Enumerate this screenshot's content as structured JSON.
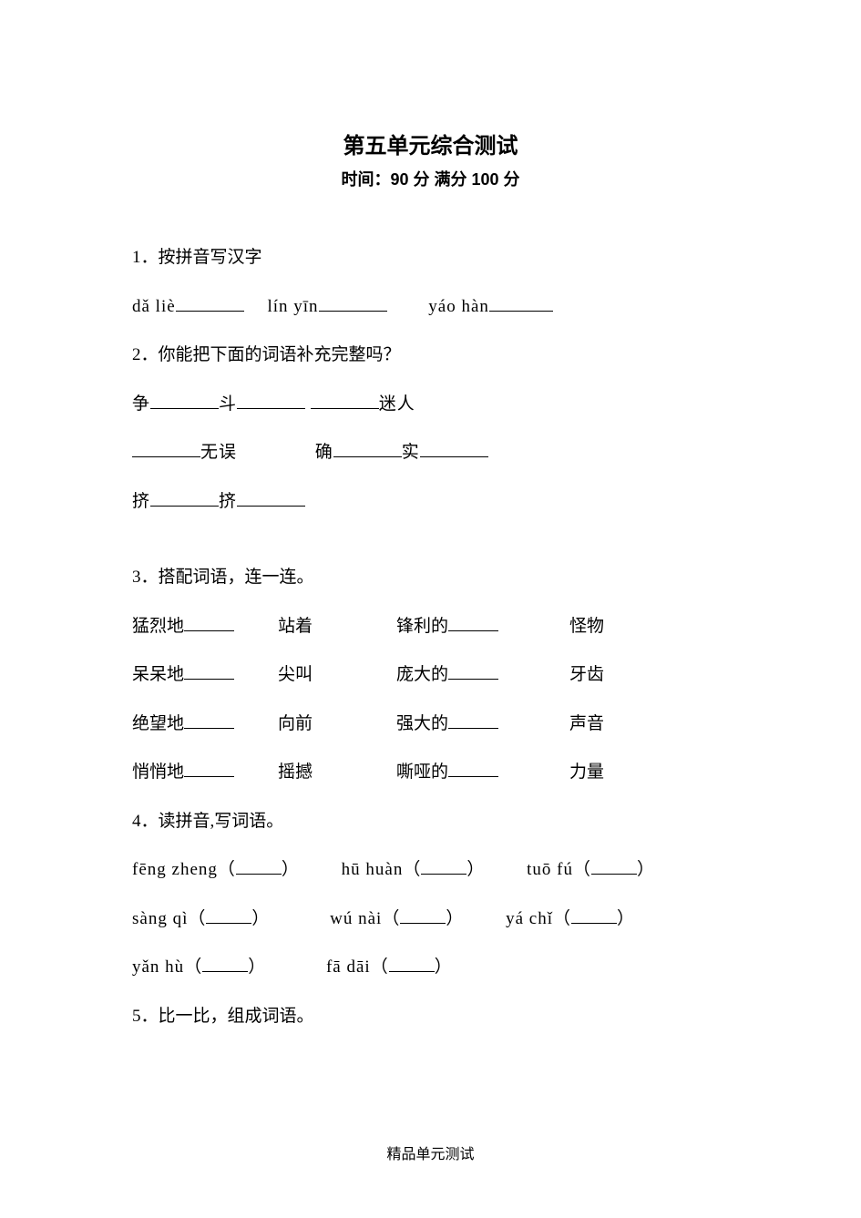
{
  "title": "第五单元综合测试",
  "subtitle": "时间：90 分 满分 100 分",
  "q1": {
    "label": "1．按拼音写汉字",
    "items": [
      "dǎ liè",
      "lín yīn",
      "yáo hàn"
    ]
  },
  "q2": {
    "label": "2．你能把下面的词语补充完整吗？",
    "line1_a": "争",
    "line1_b": "斗",
    "line1_c": "迷人",
    "line2_a": "无误",
    "line2_b": "确",
    "line2_c": "实",
    "line3_a": "挤",
    "line3_b": "挤"
  },
  "q3": {
    "label": "3．搭配词语，连一连。",
    "rows": [
      {
        "a": "猛烈地",
        "b": "站着",
        "c": "锋利的",
        "d": "怪物"
      },
      {
        "a": "呆呆地",
        "b": "尖叫",
        "c": "庞大的",
        "d": "牙齿"
      },
      {
        "a": "绝望地",
        "b": "向前",
        "c": "强大的",
        "d": "声音"
      },
      {
        "a": "悄悄地",
        "b": "摇撼",
        "c": "嘶哑的",
        "d": "力量"
      }
    ]
  },
  "q4": {
    "label": "4．读拼音,写词语。",
    "row1": [
      "fēng zheng",
      "hū huàn",
      "tuō fú"
    ],
    "row2": [
      "sàng qì",
      "wú nài",
      "yá chǐ"
    ],
    "row3": [
      "yǎn hù",
      "fā dāi"
    ]
  },
  "q5": {
    "label": "5．比一比，组成词语。"
  },
  "footer": "精品单元测试"
}
